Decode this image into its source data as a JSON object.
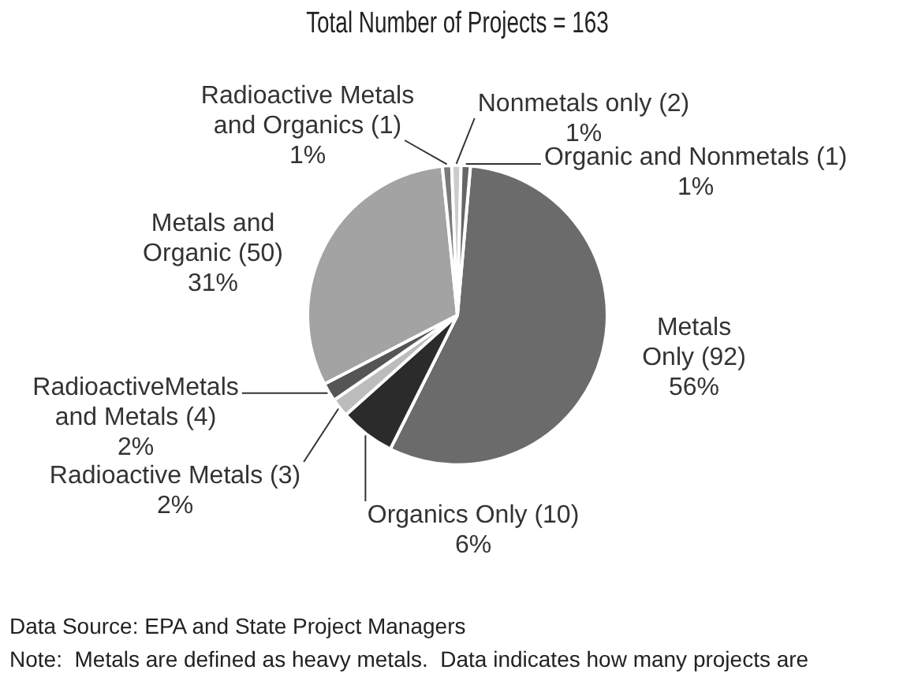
{
  "chart_data": {
    "type": "pie",
    "title": "Total Number of Projects = 163",
    "categories": [
      "Metals Only (92)",
      "Organics Only (10)",
      "Radioactive Metals (3)",
      "RadioactiveMetals and Metals (4)",
      "Metals and Organic (50)",
      "Radioactive Metals and Organics (1)",
      "Nonmetals only (2)",
      "Organic and Nonmetals (1)"
    ],
    "values": [
      56,
      6,
      2,
      2,
      31,
      1,
      1,
      1
    ],
    "colors": [
      "#6b6b6b",
      "#2b2b2b",
      "#bcbcbc",
      "#555555",
      "#a3a3a3",
      "#7a7a7a",
      "#cccccc",
      "#666666"
    ],
    "value_labels": [
      "56%",
      "6%",
      "2%",
      "2%",
      "31%",
      "1%",
      "1%",
      "1%"
    ],
    "annotations": [
      "Data Source: EPA and State Project Managers",
      "Note:  Metals are defined as heavy metals.  Data indicates how many projects are"
    ],
    "legend": false
  }
}
